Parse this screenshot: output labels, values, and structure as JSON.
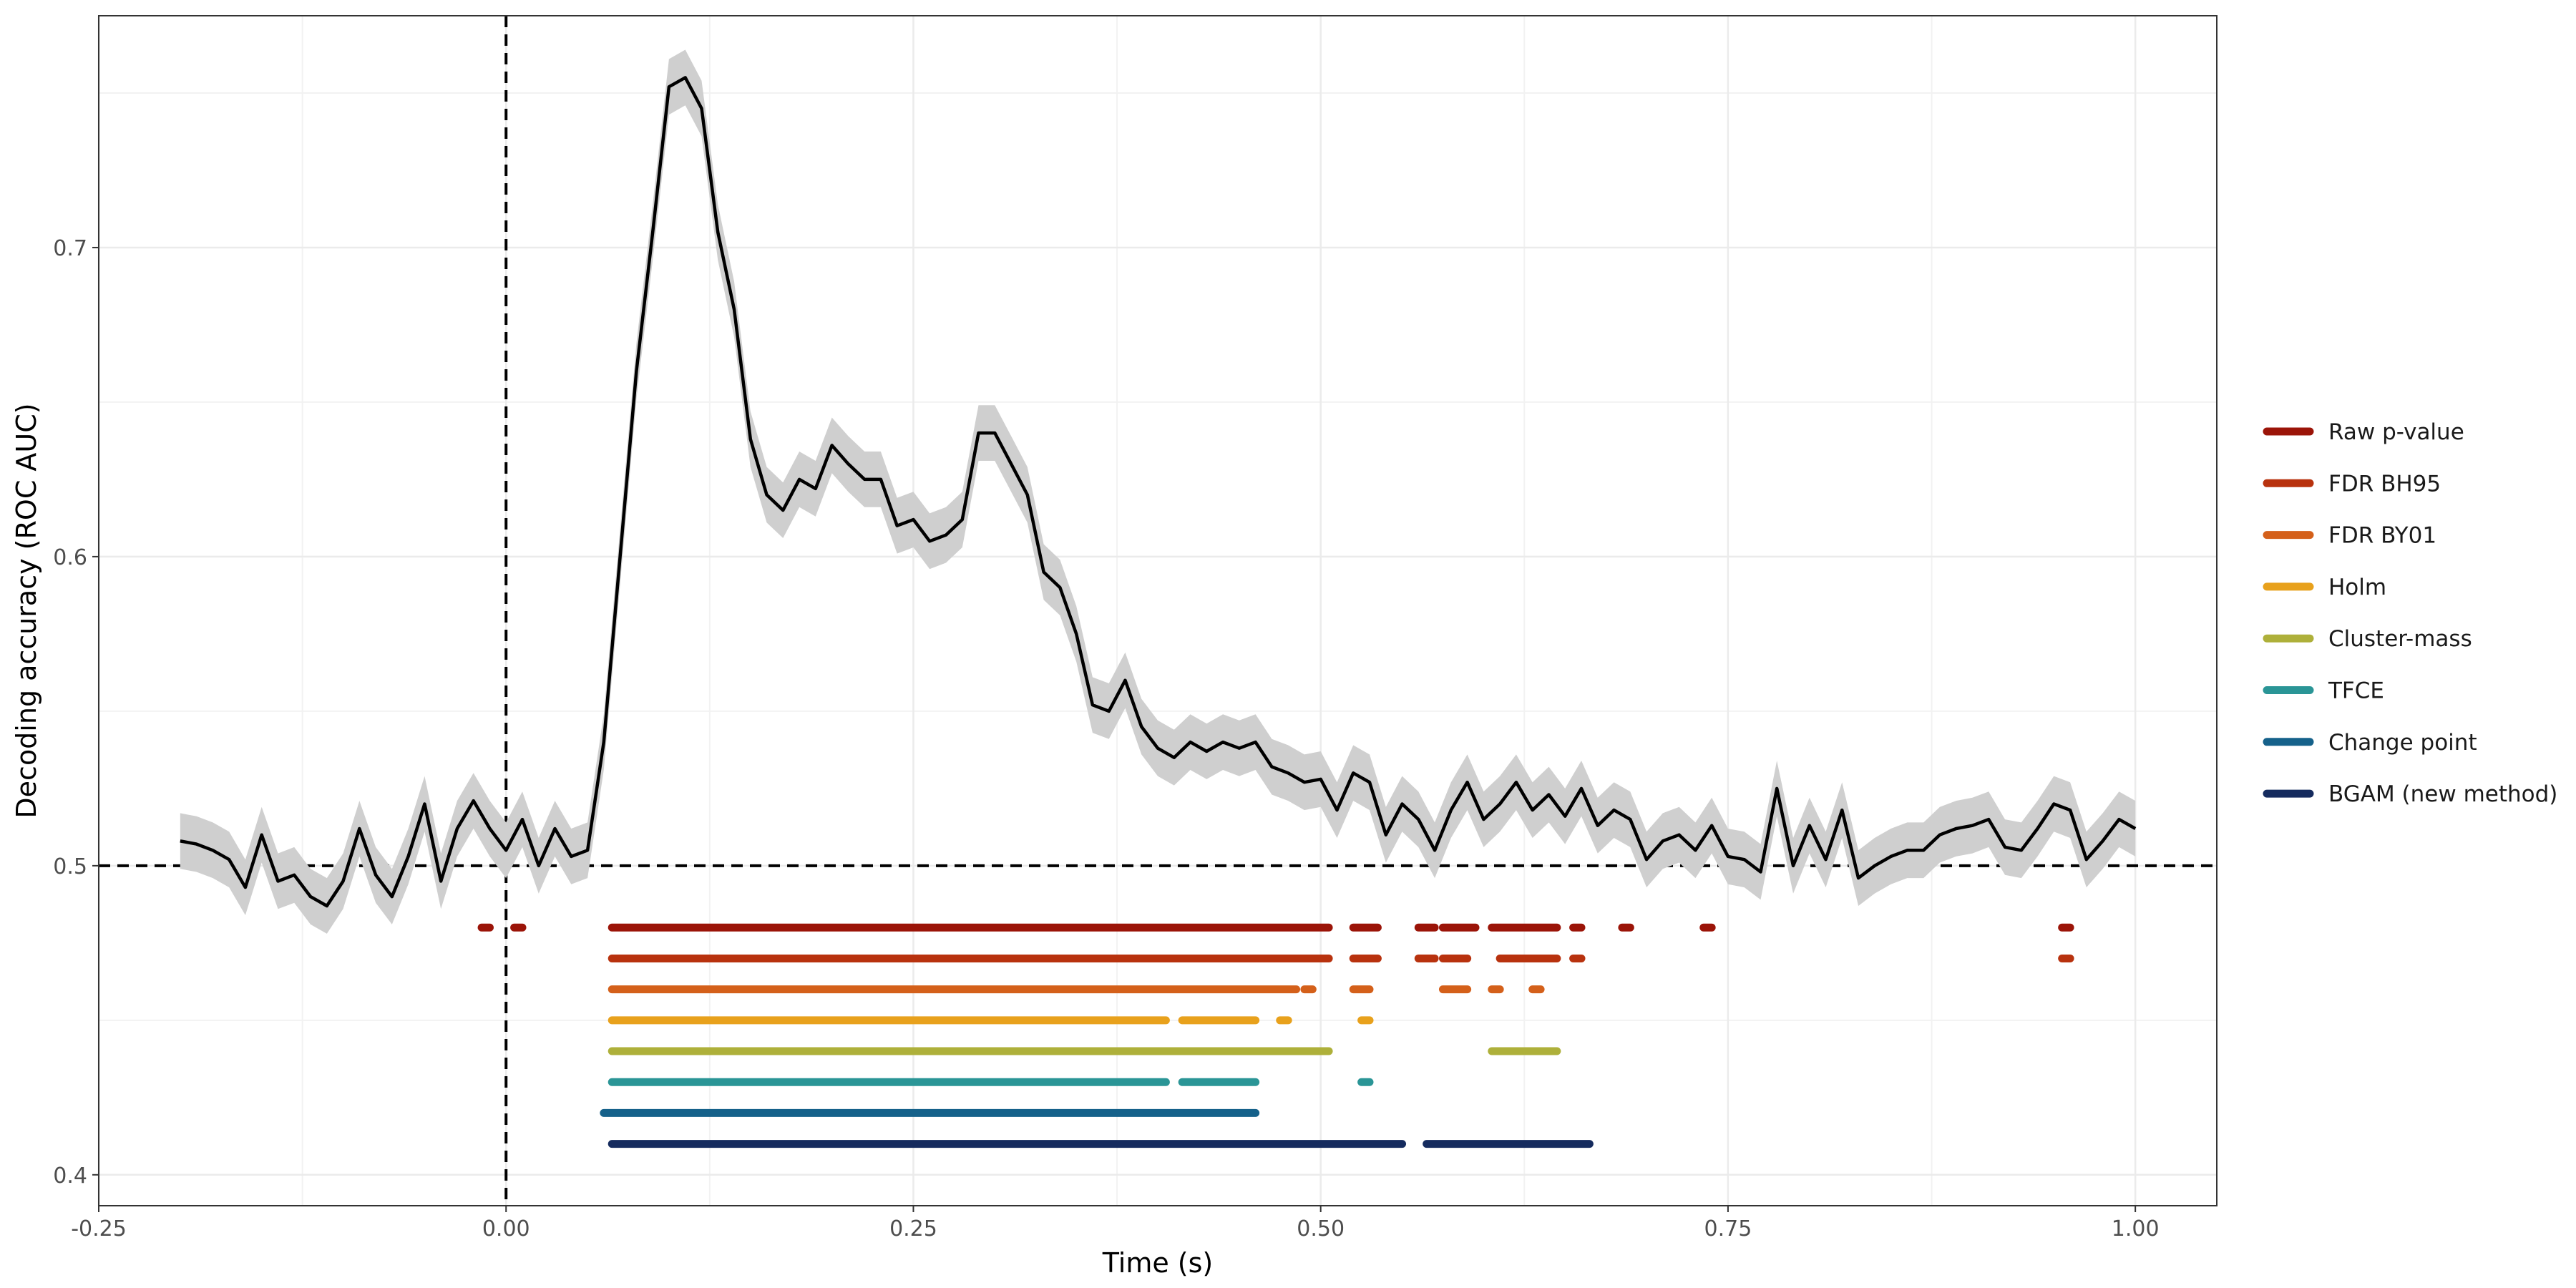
{
  "chart_data": {
    "type": "line",
    "xlabel": "Time (s)",
    "ylabel": "Decoding accuracy (ROC AUC)",
    "xlim": [
      -0.25,
      1.05
    ],
    "ylim": [
      0.39,
      0.775
    ],
    "x_ticks": [
      -0.25,
      0,
      0.25,
      0.5,
      0.75,
      1.0
    ],
    "x_tick_labels": [
      "-0.25",
      "0.00",
      "0.25",
      "0.50",
      "0.75",
      "1.00"
    ],
    "y_ticks": [
      0.4,
      0.5,
      0.6,
      0.7
    ],
    "y_tick_labels": [
      "0.4",
      "0.5",
      "0.6",
      "0.7"
    ],
    "grid": true,
    "chance_level": 0.5,
    "stimulus_onset": 0.0,
    "legend_position": "right",
    "series": [
      {
        "name": "Decoding accuracy",
        "color": "#000000",
        "ribbon_color": "#cccccc",
        "points": [
          [
            -0.2,
            0.508
          ],
          [
            -0.19,
            0.507
          ],
          [
            -0.18,
            0.505
          ],
          [
            -0.17,
            0.502
          ],
          [
            -0.16,
            0.493
          ],
          [
            -0.15,
            0.51
          ],
          [
            -0.14,
            0.495
          ],
          [
            -0.13,
            0.497
          ],
          [
            -0.12,
            0.49
          ],
          [
            -0.11,
            0.487
          ],
          [
            -0.1,
            0.495
          ],
          [
            -0.09,
            0.512
          ],
          [
            -0.08,
            0.497
          ],
          [
            -0.07,
            0.49
          ],
          [
            -0.06,
            0.503
          ],
          [
            -0.05,
            0.52
          ],
          [
            -0.04,
            0.495
          ],
          [
            -0.03,
            0.512
          ],
          [
            -0.02,
            0.521
          ],
          [
            -0.01,
            0.512
          ],
          [
            0.0,
            0.505
          ],
          [
            0.01,
            0.515
          ],
          [
            0.02,
            0.5
          ],
          [
            0.03,
            0.512
          ],
          [
            0.04,
            0.503
          ],
          [
            0.05,
            0.505
          ],
          [
            0.06,
            0.54
          ],
          [
            0.07,
            0.6
          ],
          [
            0.08,
            0.66
          ],
          [
            0.09,
            0.705
          ],
          [
            0.1,
            0.752
          ],
          [
            0.11,
            0.755
          ],
          [
            0.12,
            0.745
          ],
          [
            0.13,
            0.705
          ],
          [
            0.14,
            0.68
          ],
          [
            0.15,
            0.638
          ],
          [
            0.16,
            0.62
          ],
          [
            0.17,
            0.615
          ],
          [
            0.18,
            0.625
          ],
          [
            0.19,
            0.622
          ],
          [
            0.2,
            0.636
          ],
          [
            0.21,
            0.63
          ],
          [
            0.22,
            0.625
          ],
          [
            0.23,
            0.625
          ],
          [
            0.24,
            0.61
          ],
          [
            0.25,
            0.612
          ],
          [
            0.26,
            0.605
          ],
          [
            0.27,
            0.607
          ],
          [
            0.28,
            0.612
          ],
          [
            0.29,
            0.64
          ],
          [
            0.3,
            0.64
          ],
          [
            0.31,
            0.63
          ],
          [
            0.32,
            0.62
          ],
          [
            0.33,
            0.595
          ],
          [
            0.34,
            0.59
          ],
          [
            0.35,
            0.575
          ],
          [
            0.36,
            0.552
          ],
          [
            0.37,
            0.55
          ],
          [
            0.38,
            0.56
          ],
          [
            0.39,
            0.545
          ],
          [
            0.4,
            0.538
          ],
          [
            0.41,
            0.535
          ],
          [
            0.42,
            0.54
          ],
          [
            0.43,
            0.537
          ],
          [
            0.44,
            0.54
          ],
          [
            0.45,
            0.538
          ],
          [
            0.46,
            0.54
          ],
          [
            0.47,
            0.532
          ],
          [
            0.48,
            0.53
          ],
          [
            0.49,
            0.527
          ],
          [
            0.5,
            0.528
          ],
          [
            0.51,
            0.518
          ],
          [
            0.52,
            0.53
          ],
          [
            0.53,
            0.527
          ],
          [
            0.54,
            0.51
          ],
          [
            0.55,
            0.52
          ],
          [
            0.56,
            0.515
          ],
          [
            0.57,
            0.505
          ],
          [
            0.58,
            0.518
          ],
          [
            0.59,
            0.527
          ],
          [
            0.6,
            0.515
          ],
          [
            0.61,
            0.52
          ],
          [
            0.62,
            0.527
          ],
          [
            0.63,
            0.518
          ],
          [
            0.64,
            0.523
          ],
          [
            0.65,
            0.516
          ],
          [
            0.66,
            0.525
          ],
          [
            0.67,
            0.513
          ],
          [
            0.68,
            0.518
          ],
          [
            0.69,
            0.515
          ],
          [
            0.7,
            0.502
          ],
          [
            0.71,
            0.508
          ],
          [
            0.72,
            0.51
          ],
          [
            0.73,
            0.505
          ],
          [
            0.74,
            0.513
          ],
          [
            0.75,
            0.503
          ],
          [
            0.76,
            0.502
          ],
          [
            0.77,
            0.498
          ],
          [
            0.78,
            0.525
          ],
          [
            0.79,
            0.5
          ],
          [
            0.8,
            0.513
          ],
          [
            0.81,
            0.502
          ],
          [
            0.82,
            0.518
          ],
          [
            0.83,
            0.496
          ],
          [
            0.84,
            0.5
          ],
          [
            0.85,
            0.503
          ],
          [
            0.86,
            0.505
          ],
          [
            0.87,
            0.505
          ],
          [
            0.88,
            0.51
          ],
          [
            0.89,
            0.512
          ],
          [
            0.9,
            0.513
          ],
          [
            0.91,
            0.515
          ],
          [
            0.92,
            0.506
          ],
          [
            0.93,
            0.505
          ],
          [
            0.94,
            0.512
          ],
          [
            0.95,
            0.52
          ],
          [
            0.96,
            0.518
          ],
          [
            0.97,
            0.502
          ],
          [
            0.98,
            0.508
          ],
          [
            0.99,
            0.515
          ],
          [
            1.0,
            0.512
          ]
        ]
      }
    ],
    "significance": [
      {
        "name": "Raw p-value",
        "color": "#9b1408",
        "y": 0.48,
        "segments": [
          [
            -0.015,
            -0.01
          ],
          [
            0.005,
            0.01
          ],
          [
            0.065,
            0.505
          ],
          [
            0.52,
            0.535
          ],
          [
            0.56,
            0.57
          ],
          [
            0.575,
            0.595
          ],
          [
            0.605,
            0.645
          ],
          [
            0.655,
            0.66
          ],
          [
            0.685,
            0.69
          ],
          [
            0.735,
            0.74
          ],
          [
            0.955,
            0.96
          ]
        ]
      },
      {
        "name": "FDR BH95",
        "color": "#b8320e",
        "y": 0.47,
        "segments": [
          [
            0.065,
            0.505
          ],
          [
            0.52,
            0.535
          ],
          [
            0.56,
            0.57
          ],
          [
            0.575,
            0.59
          ],
          [
            0.61,
            0.645
          ],
          [
            0.655,
            0.66
          ],
          [
            0.955,
            0.96
          ]
        ]
      },
      {
        "name": "FDR BY01",
        "color": "#d4601a",
        "y": 0.46,
        "segments": [
          [
            0.065,
            0.485
          ],
          [
            0.49,
            0.495
          ],
          [
            0.52,
            0.53
          ],
          [
            0.575,
            0.59
          ],
          [
            0.605,
            0.61
          ],
          [
            0.63,
            0.635
          ]
        ]
      },
      {
        "name": "Holm",
        "color": "#e8a11c",
        "y": 0.45,
        "segments": [
          [
            0.065,
            0.405
          ],
          [
            0.415,
            0.46
          ],
          [
            0.475,
            0.48
          ],
          [
            0.525,
            0.53
          ]
        ]
      },
      {
        "name": "Cluster-mass",
        "color": "#aeb03a",
        "y": 0.44,
        "segments": [
          [
            0.065,
            0.505
          ],
          [
            0.605,
            0.645
          ]
        ]
      },
      {
        "name": "TFCE",
        "color": "#2a9596",
        "y": 0.43,
        "segments": [
          [
            0.065,
            0.405
          ],
          [
            0.415,
            0.46
          ],
          [
            0.525,
            0.53
          ]
        ]
      },
      {
        "name": "Change point",
        "color": "#15618a",
        "y": 0.42,
        "segments": [
          [
            0.06,
            0.46
          ]
        ]
      },
      {
        "name": "BGAM (new method)",
        "color": "#152b5e",
        "y": 0.41,
        "segments": [
          [
            0.065,
            0.55
          ],
          [
            0.565,
            0.665
          ]
        ]
      }
    ]
  }
}
